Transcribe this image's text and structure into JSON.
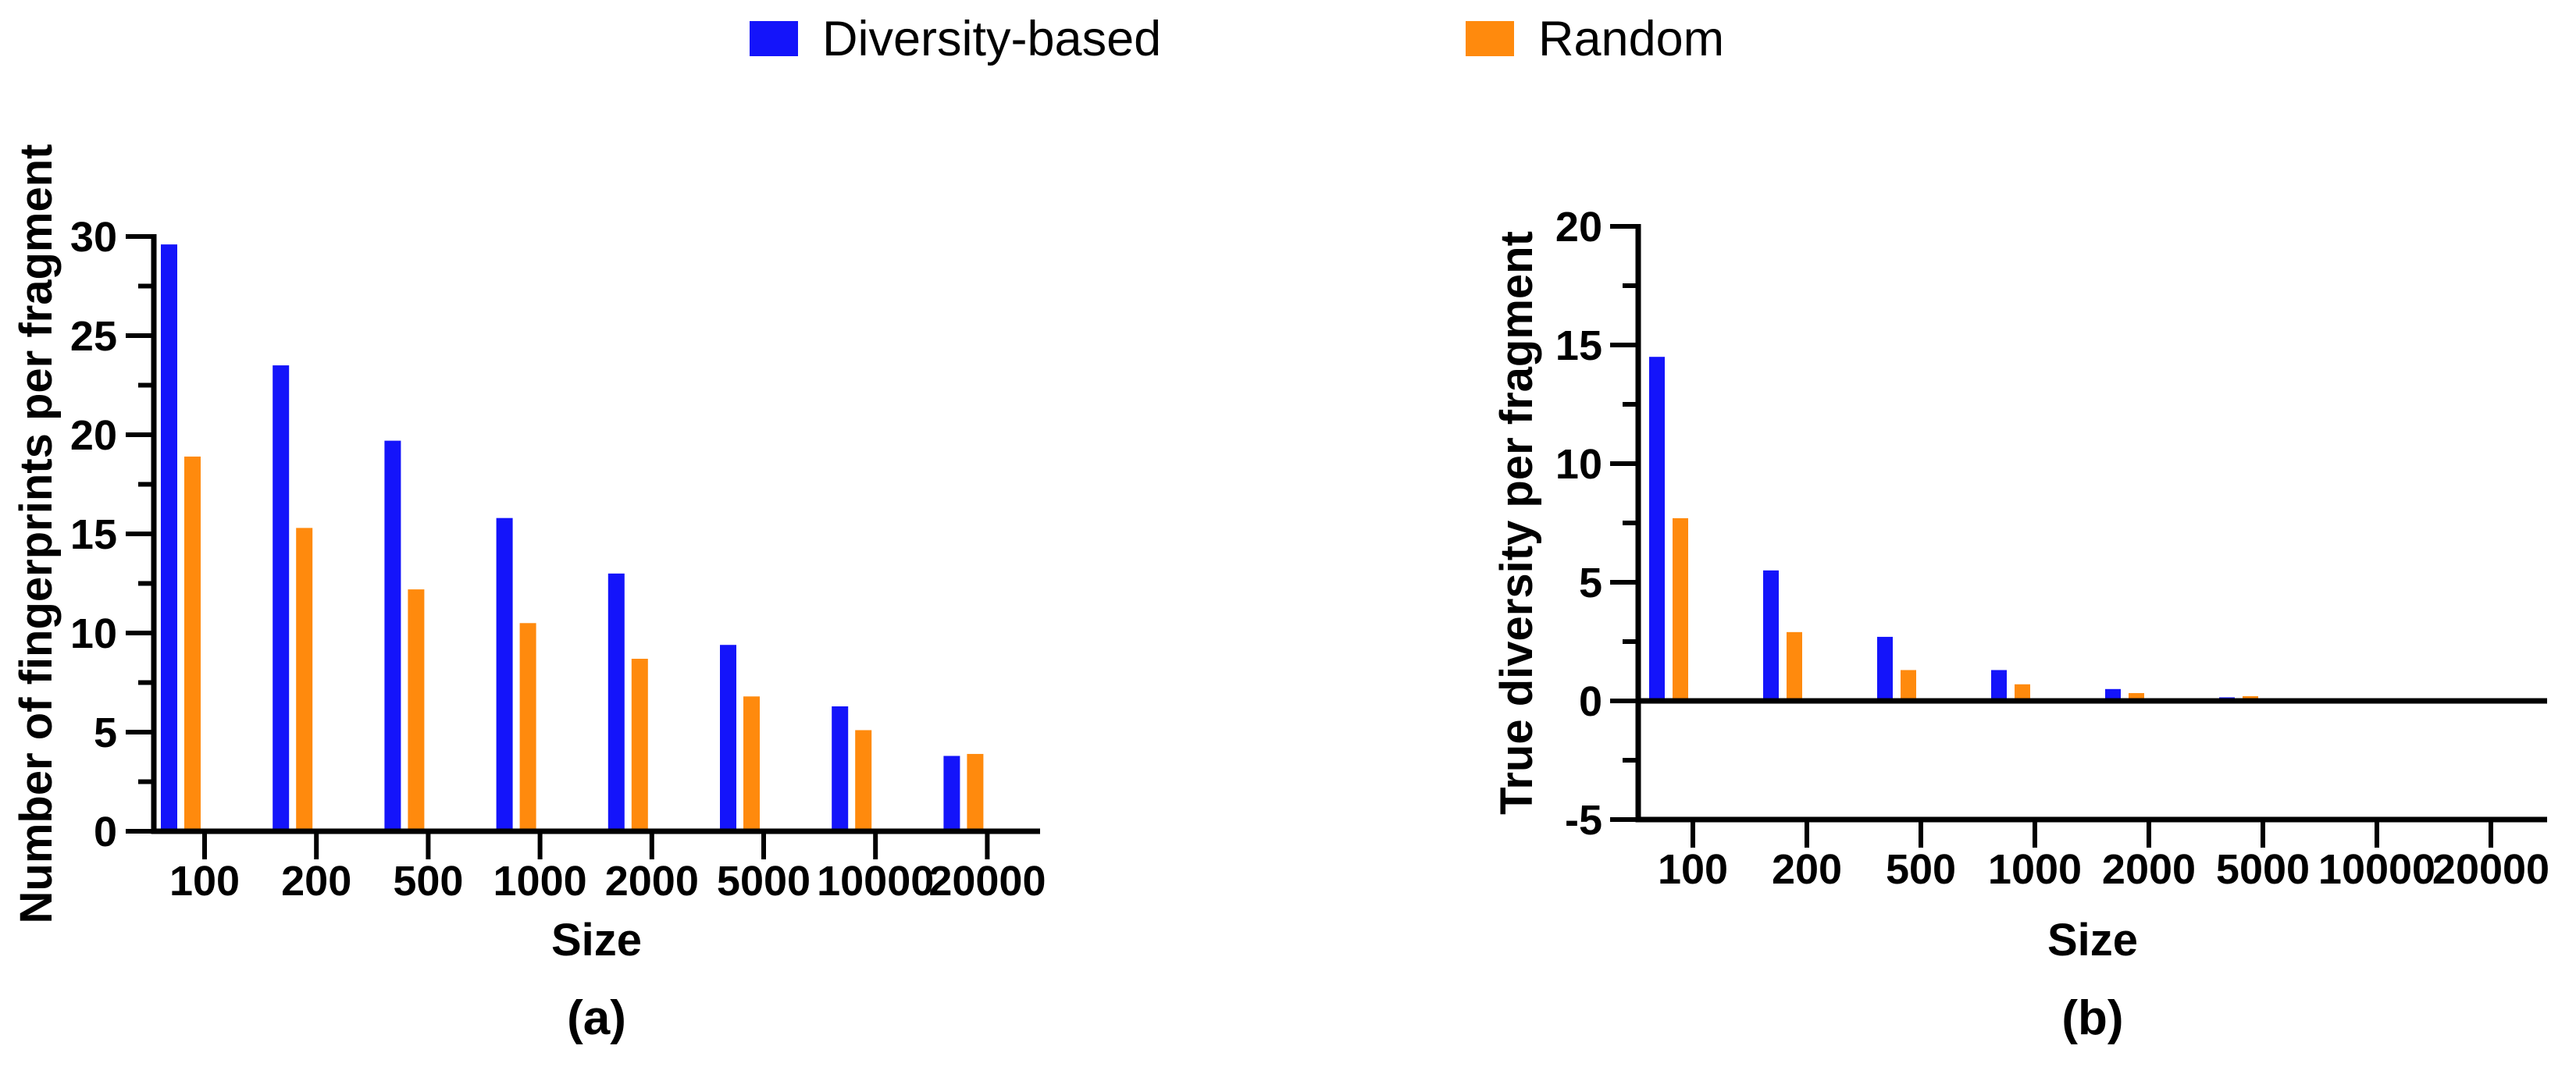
{
  "legend": {
    "items": [
      {
        "label": "Diversity-based",
        "color": "#1414FA"
      },
      {
        "label": "Random",
        "color": "#FF8A0D"
      }
    ]
  },
  "colors": {
    "diversity_blue": "#1414FA",
    "random_orange": "#FF8A0D",
    "axis_black": "#000000",
    "background": "#FFFFFF"
  },
  "chart_data": [
    {
      "type": "bar",
      "panel_label": "(a)",
      "xlabel": "Size",
      "ylabel": "Number of fingerprints per fragment",
      "categories": [
        "100",
        "200",
        "500",
        "1000",
        "2000",
        "5000",
        "10000",
        "20000"
      ],
      "series": [
        {
          "name": "Diversity-based",
          "color": "#1414FA",
          "values": [
            29.6,
            23.5,
            19.7,
            15.8,
            13.0,
            9.4,
            6.3,
            3.8
          ]
        },
        {
          "name": "Random",
          "color": "#FF8A0D",
          "values": [
            18.9,
            15.3,
            12.2,
            10.5,
            8.7,
            6.8,
            5.1,
            3.9
          ]
        }
      ],
      "ylim": [
        0,
        30
      ],
      "yticks": [
        0,
        5,
        10,
        15,
        20,
        25,
        30
      ],
      "ytick_minor_step": 2.5,
      "grid": false,
      "legend_position": "top-center"
    },
    {
      "type": "bar",
      "panel_label": "(b)",
      "xlabel": "Size",
      "ylabel": "True diversity per fragment",
      "categories": [
        "100",
        "200",
        "500",
        "1000",
        "2000",
        "5000",
        "10000",
        "20000"
      ],
      "series": [
        {
          "name": "Diversity-based",
          "color": "#1414FA",
          "values": [
            14.5,
            5.5,
            2.7,
            1.3,
            0.5,
            0.15,
            0.05,
            0.03
          ]
        },
        {
          "name": "Random",
          "color": "#FF8A0D",
          "values": [
            7.7,
            2.9,
            1.3,
            0.7,
            0.33,
            0.2,
            0.05,
            0.03
          ]
        }
      ],
      "ylim": [
        -5,
        20
      ],
      "yticks": [
        -5,
        0,
        5,
        10,
        15,
        20
      ],
      "ytick_minor_step": 2.5,
      "grid": false,
      "zero_line": true,
      "legend_position": "top-center"
    }
  ]
}
